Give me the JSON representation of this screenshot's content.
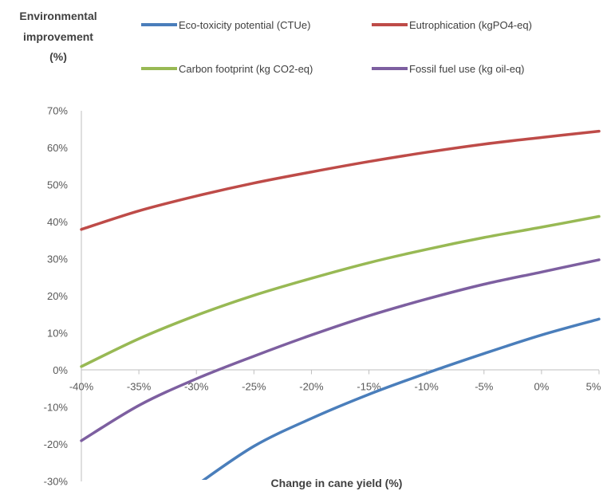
{
  "chart_data": {
    "type": "line",
    "ylabel_lines": [
      "Environmental",
      "improvement",
      "(%)"
    ],
    "xlabel": "Change in cane yield (%)",
    "x": [
      -40,
      -35,
      -30,
      -25,
      -20,
      -15,
      -10,
      -5,
      0,
      5
    ],
    "x_tick_labels": [
      "-40%",
      "-35%",
      "-30%",
      "-25%",
      "-20%",
      "-15%",
      "-10%",
      "-5%",
      "0%",
      "5%"
    ],
    "y_tick_labels": [
      "70%",
      "60%",
      "50%",
      "40%",
      "30%",
      "20%",
      "10%",
      "0%",
      "-10%",
      "-20%",
      "-30%"
    ],
    "ylim": [
      -30,
      70
    ],
    "grid": false,
    "legend_position": "top",
    "series": [
      {
        "name": "Eco-toxicity potential (CTUe)",
        "color": "#4a7ebb",
        "values": [
          null,
          null,
          -31,
          -20.5,
          -13,
          -6.5,
          -0.8,
          4.5,
          9.5,
          13.8
        ]
      },
      {
        "name": "Eutrophication (kgPO4-eq)",
        "color": "#be4b48",
        "values": [
          38,
          43,
          47,
          50.5,
          53.5,
          56.3,
          58.8,
          61,
          62.8,
          64.5
        ]
      },
      {
        "name": "Carbon footprint (kg CO2-eq)",
        "color": "#98b954",
        "values": [
          1,
          8.5,
          14.8,
          20.2,
          24.8,
          29,
          32.6,
          35.8,
          38.6,
          41.5
        ]
      },
      {
        "name": "Fossil fuel use (kg oil-eq)",
        "color": "#7d5fa0",
        "values": [
          -19,
          -9.5,
          -2.3,
          3.8,
          9.5,
          14.7,
          19.2,
          23.2,
          26.5,
          29.8
        ]
      }
    ]
  }
}
